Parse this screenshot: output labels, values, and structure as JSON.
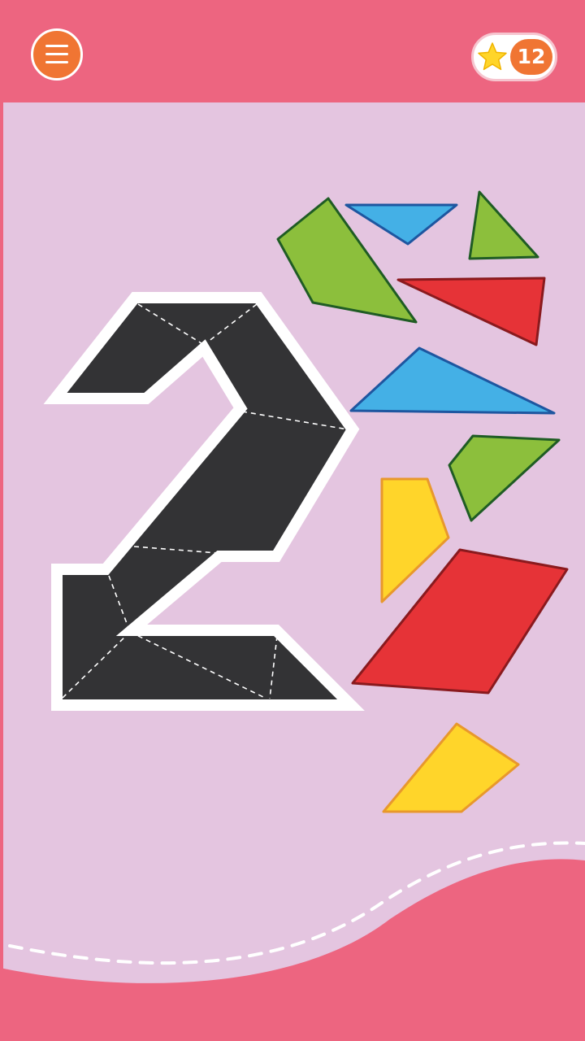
{
  "score": {
    "value": "12",
    "star_icon": "star-icon"
  },
  "menu": {
    "icon": "hamburger-menu-icon"
  },
  "puzzle": {
    "target_shape": "digit-2-outline",
    "pieces": [
      {
        "id": "green-quadrilateral-large",
        "color": "#8cbf3c"
      },
      {
        "id": "blue-triangle-small",
        "color": "#44b0e6"
      },
      {
        "id": "green-triangle-small",
        "color": "#8cbf3c"
      },
      {
        "id": "red-triangle",
        "color": "#e63337"
      },
      {
        "id": "blue-triangle-large",
        "color": "#44b0e6"
      },
      {
        "id": "green-quadrilateral-small",
        "color": "#8cbf3c"
      },
      {
        "id": "yellow-quadrilateral-upper",
        "color": "#ffd52a"
      },
      {
        "id": "red-parallelogram",
        "color": "#e63337"
      },
      {
        "id": "yellow-quadrilateral-lower",
        "color": "#ffd52a"
      }
    ]
  },
  "colors": {
    "header": "#ed6580",
    "background": "#e4c5e0",
    "accent": "#f07533",
    "silhouette": "#333335"
  }
}
